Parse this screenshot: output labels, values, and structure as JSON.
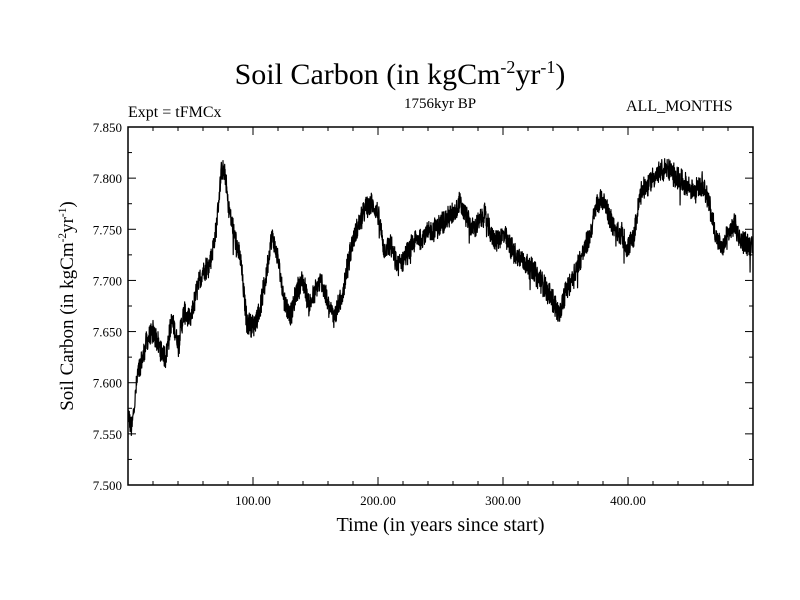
{
  "chart_data": {
    "type": "line",
    "title": {
      "main": "Soil Carbon (in kgCm",
      "exp1": "-2",
      "mid": "yr",
      "exp2": "-1",
      "end": ")"
    },
    "left_annotation": "Expt = tFMCx",
    "subtitle": "1756kyr BP",
    "right_annotation": "ALL_MONTHS",
    "xlabel": "Time (in years since start)",
    "ylabel": {
      "main": "Soil Carbon (in kgCm",
      "exp1": "-2",
      "mid": "yr",
      "exp2": "-1",
      "end": ")"
    },
    "xlim": [
      0,
      500
    ],
    "ylim": [
      7.5,
      7.85
    ],
    "x_ticks": [
      100,
      200,
      300,
      400
    ],
    "x_tick_labels": [
      "100.00",
      "200.00",
      "300.00",
      "400.00"
    ],
    "y_ticks": [
      7.5,
      7.55,
      7.6,
      7.65,
      7.7,
      7.75,
      7.8,
      7.85
    ],
    "y_tick_labels": [
      "7.500",
      "7.550",
      "7.600",
      "7.650",
      "7.700",
      "7.750",
      "7.800",
      "7.850"
    ],
    "series": [
      {
        "name": "Soil Carbon",
        "color": "#000000",
        "noise_amplitude": 0.012,
        "x": [
          0,
          3,
          8,
          12,
          15,
          20,
          25,
          30,
          35,
          40,
          45,
          50,
          55,
          60,
          65,
          70,
          75,
          78,
          80,
          85,
          90,
          95,
          100,
          105,
          110,
          115,
          120,
          125,
          130,
          135,
          140,
          145,
          150,
          155,
          160,
          165,
          170,
          175,
          180,
          185,
          190,
          195,
          200,
          205,
          210,
          215,
          220,
          225,
          230,
          240,
          250,
          260,
          265,
          270,
          275,
          280,
          285,
          290,
          295,
          300,
          310,
          320,
          330,
          340,
          345,
          350,
          360,
          370,
          375,
          380,
          385,
          390,
          395,
          400,
          405,
          410,
          420,
          430,
          440,
          450,
          460,
          465,
          470,
          475,
          480,
          485,
          490,
          495,
          500
        ],
        "y": [
          7.57,
          7.555,
          7.61,
          7.625,
          7.64,
          7.65,
          7.635,
          7.625,
          7.66,
          7.64,
          7.67,
          7.66,
          7.69,
          7.71,
          7.715,
          7.745,
          7.81,
          7.8,
          7.775,
          7.745,
          7.72,
          7.66,
          7.655,
          7.67,
          7.7,
          7.745,
          7.72,
          7.68,
          7.665,
          7.69,
          7.7,
          7.675,
          7.69,
          7.7,
          7.675,
          7.665,
          7.68,
          7.71,
          7.74,
          7.755,
          7.77,
          7.775,
          7.765,
          7.73,
          7.735,
          7.715,
          7.72,
          7.73,
          7.74,
          7.745,
          7.755,
          7.765,
          7.775,
          7.765,
          7.75,
          7.755,
          7.765,
          7.745,
          7.74,
          7.745,
          7.725,
          7.715,
          7.7,
          7.68,
          7.665,
          7.69,
          7.715,
          7.745,
          7.775,
          7.78,
          7.765,
          7.745,
          7.745,
          7.73,
          7.745,
          7.785,
          7.8,
          7.81,
          7.8,
          7.79,
          7.795,
          7.775,
          7.745,
          7.73,
          7.745,
          7.755,
          7.74,
          7.735,
          7.73
        ]
      }
    ]
  }
}
